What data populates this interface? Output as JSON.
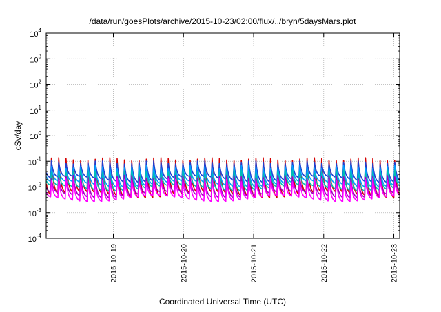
{
  "chart_data": {
    "type": "line",
    "title": "/data/run/goesPlots/archive/2015-10-23/02:00/flux/../bryn/5daysMars.plot",
    "xlabel": "Coordinated Universal Time (UTC)",
    "ylabel": "cSv/day",
    "yscale": "log",
    "ylim": [
      0.0001,
      10000
    ],
    "xlim": [
      "2015-10-18T01:00",
      "2015-10-23T02:00"
    ],
    "grid": true,
    "legend": "none",
    "y_ticks": [
      {
        "base": "10",
        "exp": "-4",
        "value": 0.0001
      },
      {
        "base": "10",
        "exp": "-3",
        "value": 0.001
      },
      {
        "base": "10",
        "exp": "-2",
        "value": 0.01
      },
      {
        "base": "10",
        "exp": "-1",
        "value": 0.1
      },
      {
        "base": "10",
        "exp": "0",
        "value": 1
      },
      {
        "base": "10",
        "exp": "1",
        "value": 10
      },
      {
        "base": "10",
        "exp": "2",
        "value": 100
      },
      {
        "base": "10",
        "exp": "3",
        "value": 1000
      },
      {
        "base": "10",
        "exp": "4",
        "value": 10000
      }
    ],
    "x_ticks": [
      {
        "label": "2015-10-19",
        "value": "2015-10-19T00:00"
      },
      {
        "label": "2015-10-20",
        "value": "2015-10-20T00:00"
      },
      {
        "label": "2015-10-21",
        "value": "2015-10-21T00:00"
      },
      {
        "label": "2015-10-22",
        "value": "2015-10-22T00:00"
      },
      {
        "label": "2015-10-23",
        "value": "2015-10-23T00:00"
      }
    ],
    "cycle_period_hours": 2.5,
    "series": [
      {
        "color": "#d40000",
        "peak": 0.12,
        "trough": 0.005
      },
      {
        "color": "#1f3fd0",
        "peak": 0.09,
        "trough": 0.02
      },
      {
        "color": "#00a0ff",
        "peak": 0.06,
        "trough": 0.013
      },
      {
        "color": "#00c0b0",
        "peak": 0.04,
        "trough": 0.009
      },
      {
        "color": "#a000c0",
        "peak": 0.025,
        "trough": 0.005
      },
      {
        "color": "#ff00ff",
        "peak": 0.018,
        "trough": 0.0035
      }
    ]
  }
}
